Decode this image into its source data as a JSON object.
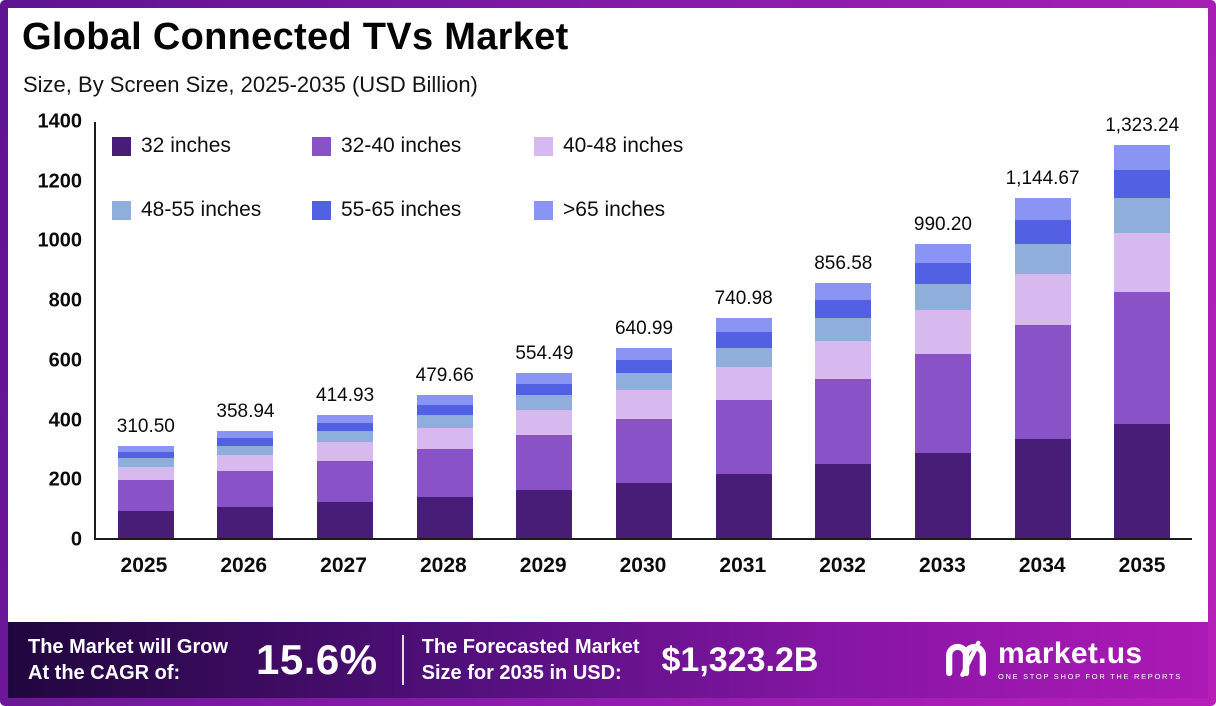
{
  "header": {
    "title": "Global Connected TVs Market",
    "subtitle": "Size, By Screen Size, 2025-2035 (USD Billion)"
  },
  "chart_data": {
    "type": "bar",
    "stacked": true,
    "title": "Global Connected TVs Market",
    "subtitle": "Size, By Screen Size, 2025-2035 (USD Billion)",
    "unit": "USD Billion",
    "grid": false,
    "legend_position": "top-left-inside",
    "ylim": [
      0,
      1400
    ],
    "y_ticks": [
      0,
      200,
      400,
      600,
      800,
      1000,
      1200,
      1400
    ],
    "categories": [
      "2025",
      "2026",
      "2027",
      "2028",
      "2029",
      "2030",
      "2031",
      "2032",
      "2033",
      "2034",
      "2035"
    ],
    "totals": [
      310.5,
      358.94,
      414.93,
      479.66,
      554.49,
      640.99,
      740.98,
      856.58,
      990.2,
      1144.67,
      1323.24
    ],
    "total_labels": [
      "310.50",
      "358.94",
      "414.93",
      "479.66",
      "554.49",
      "640.99",
      "740.98",
      "856.58",
      "990.20",
      "1,144.67",
      "1,323.24"
    ],
    "series": [
      {
        "name": "32 inches",
        "color": "#471d78",
        "values": [
          90.0,
          104.1,
          120.3,
          139.1,
          160.8,
          185.9,
          214.9,
          248.4,
          287.2,
          332.0,
          383.7
        ]
      },
      {
        "name": "32-40 inches",
        "color": "#8a52c7",
        "values": [
          104.0,
          120.2,
          139.0,
          160.7,
          185.8,
          214.7,
          248.2,
          286.9,
          331.7,
          383.5,
          443.3
        ]
      },
      {
        "name": "40-48 inches",
        "color": "#d7b9f0",
        "values": [
          46.6,
          53.8,
          62.2,
          71.9,
          83.2,
          96.1,
          111.1,
          128.5,
          148.5,
          171.7,
          198.5
        ]
      },
      {
        "name": "48-55 inches",
        "color": "#8faedc",
        "values": [
          27.9,
          32.3,
          37.3,
          43.2,
          49.9,
          57.7,
          66.7,
          77.1,
          89.1,
          103.0,
          119.1
        ]
      },
      {
        "name": "55-65 inches",
        "color": "#5261e4",
        "values": [
          21.7,
          25.1,
          29.0,
          33.6,
          38.8,
          44.9,
          51.9,
          60.0,
          69.3,
          80.1,
          92.6
        ]
      },
      {
        "name": ">65 inches",
        "color": "#8a94f2",
        "values": [
          20.3,
          23.4,
          27.1,
          31.2,
          36.0,
          41.7,
          48.2,
          55.7,
          64.4,
          74.4,
          86.0
        ]
      }
    ]
  },
  "footer": {
    "cagr_label_line1": "The Market will Grow",
    "cagr_label_line2": "At the CAGR of:",
    "cagr_value": "15.6%",
    "forecast_label_line1": "The Forecasted Market",
    "forecast_label_line2": "Size for 2035 in USD:",
    "forecast_value": "$1,323.2B",
    "brand_name": "market.us",
    "brand_tagline": "ONE STOP SHOP FOR THE REPORTS"
  },
  "colors": {
    "border_gradient_start": "#5e1390",
    "border_gradient_end": "#b81fb9",
    "footer_gradient_start": "#20063e",
    "footer_gradient_end": "#ad19b5",
    "axis": "#1c1c1c",
    "text": "#0b0b0b"
  }
}
